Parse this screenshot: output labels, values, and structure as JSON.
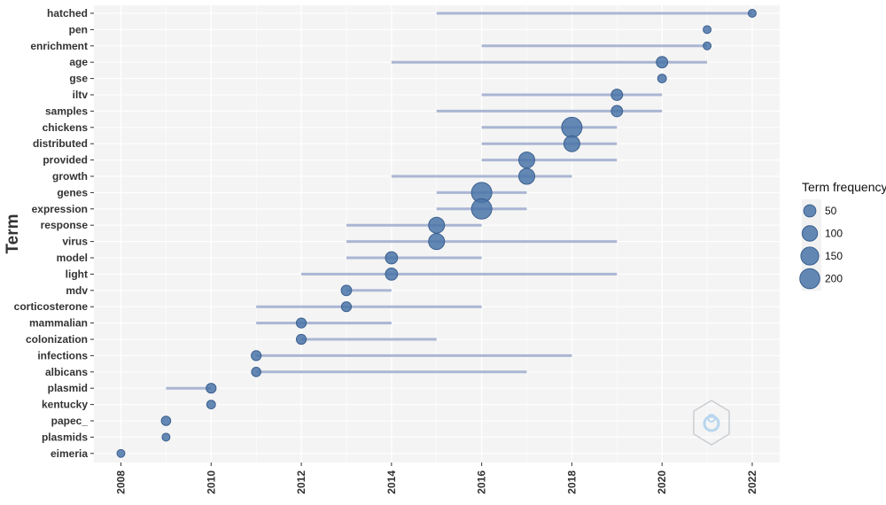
{
  "chart_data": {
    "type": "scatter",
    "title": "",
    "xlabel": "",
    "ylabel": "Term",
    "xlim": [
      2007.45,
      2022.55
    ],
    "x_ticks": [
      2008,
      2010,
      2012,
      2014,
      2016,
      2018,
      2020,
      2022
    ],
    "grid": true,
    "legend": {
      "title": "Term frequency",
      "position": "right",
      "entries": [
        {
          "label": "50",
          "value": 50
        },
        {
          "label": "100",
          "value": 100
        },
        {
          "label": "150",
          "value": 150
        },
        {
          "label": "200",
          "value": 200
        }
      ]
    },
    "terms": [
      {
        "term": "hatched",
        "q1": 2015,
        "median": 2022,
        "q3": 2022,
        "freq": 10
      },
      {
        "term": "pen",
        "q1": 2021,
        "median": 2021,
        "q3": 2021,
        "freq": 10
      },
      {
        "term": "enrichment",
        "q1": 2016,
        "median": 2021,
        "q3": 2021,
        "freq": 10
      },
      {
        "term": "age",
        "q1": 2014,
        "median": 2020,
        "q3": 2021,
        "freq": 40
      },
      {
        "term": "gse",
        "q1": 2020,
        "median": 2020,
        "q3": 2020,
        "freq": 15
      },
      {
        "term": "iltv",
        "q1": 2016,
        "median": 2019,
        "q3": 2020,
        "freq": 40
      },
      {
        "term": "samples",
        "q1": 2015,
        "median": 2019,
        "q3": 2020,
        "freq": 40
      },
      {
        "term": "chickens",
        "q1": 2016,
        "median": 2018,
        "q3": 2019,
        "freq": 210
      },
      {
        "term": "distributed",
        "q1": 2016,
        "median": 2018,
        "q3": 2019,
        "freq": 110
      },
      {
        "term": "provided",
        "q1": 2016,
        "median": 2017,
        "q3": 2019,
        "freq": 110
      },
      {
        "term": "growth",
        "q1": 2014,
        "median": 2017,
        "q3": 2018,
        "freq": 110
      },
      {
        "term": "genes",
        "q1": 2015,
        "median": 2016,
        "q3": 2017,
        "freq": 210
      },
      {
        "term": "expression",
        "q1": 2015,
        "median": 2016,
        "q3": 2017,
        "freq": 210
      },
      {
        "term": "response",
        "q1": 2013,
        "median": 2015,
        "q3": 2016,
        "freq": 110
      },
      {
        "term": "virus",
        "q1": 2013,
        "median": 2015,
        "q3": 2019,
        "freq": 110
      },
      {
        "term": "model",
        "q1": 2013,
        "median": 2014,
        "q3": 2016,
        "freq": 50
      },
      {
        "term": "light",
        "q1": 2012,
        "median": 2014,
        "q3": 2019,
        "freq": 50
      },
      {
        "term": "mdv",
        "q1": 2013,
        "median": 2013,
        "q3": 2014,
        "freq": 30
      },
      {
        "term": "corticosterone",
        "q1": 2011,
        "median": 2013,
        "q3": 2016,
        "freq": 25
      },
      {
        "term": "mammalian",
        "q1": 2011,
        "median": 2012,
        "q3": 2014,
        "freq": 25
      },
      {
        "term": "colonization",
        "q1": 2012,
        "median": 2012,
        "q3": 2015,
        "freq": 25
      },
      {
        "term": "infections",
        "q1": 2011,
        "median": 2011,
        "q3": 2018,
        "freq": 25
      },
      {
        "term": "albicans",
        "q1": 2011,
        "median": 2011,
        "q3": 2017,
        "freq": 20
      },
      {
        "term": "plasmid",
        "q1": 2009,
        "median": 2010,
        "q3": 2010,
        "freq": 25
      },
      {
        "term": "kentucky",
        "q1": 2010,
        "median": 2010,
        "q3": 2010,
        "freq": 15
      },
      {
        "term": "papec_",
        "q1": 2009,
        "median": 2009,
        "q3": 2009,
        "freq": 20
      },
      {
        "term": "plasmids",
        "q1": 2009,
        "median": 2009,
        "q3": 2009,
        "freq": 10
      },
      {
        "term": "eimeria",
        "q1": 2008,
        "median": 2008,
        "q3": 2008,
        "freq": 10
      }
    ],
    "colors": {
      "point": "#4a74a8",
      "point_stroke": "#3b5f8e",
      "range_line": "#aab6d3",
      "panel": "#f4f4f4",
      "grid": "#ffffff"
    }
  }
}
